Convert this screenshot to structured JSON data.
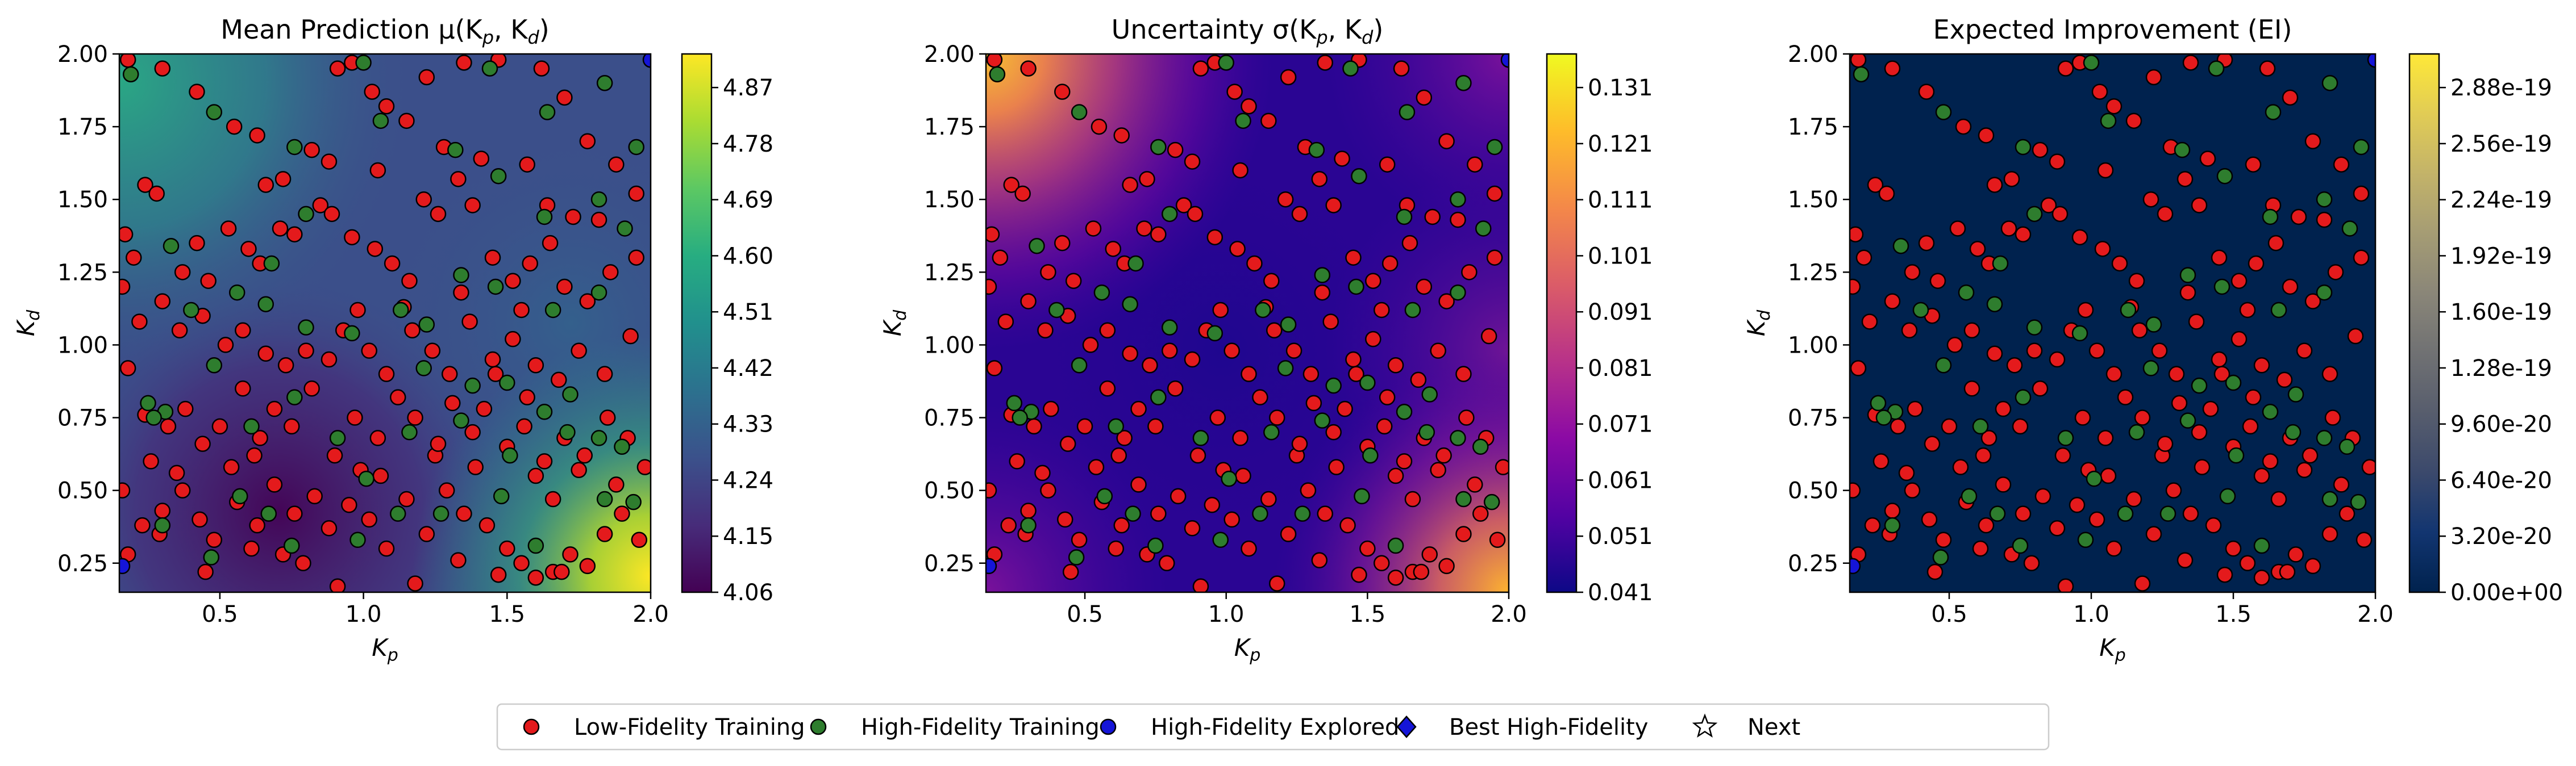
{
  "chart_data": [
    {
      "type": "heatmap",
      "title": "Mean Prediction μ(K",
      "title_sub_p": "p",
      "title_sep": ", K",
      "title_sub_d": "d",
      "title_end": ")",
      "xlabel": "K",
      "xlabel_sub": "p",
      "ylabel": "K",
      "ylabel_sub": "d",
      "xlim": [
        0.15,
        2.0
      ],
      "ylim": [
        0.15,
        2.0
      ],
      "xticks": [
        "0.5",
        "1.0",
        "1.5",
        "2.0"
      ],
      "yticks": [
        "0.25",
        "0.50",
        "0.75",
        "1.00",
        "1.25",
        "1.50",
        "1.75",
        "2.00"
      ],
      "colormap": "viridis",
      "colorbar_ticks": [
        "4.06",
        "4.15",
        "4.24",
        "4.33",
        "4.42",
        "4.51",
        "4.60",
        "4.69",
        "4.78",
        "4.87"
      ],
      "colorbar_range": [
        4.06,
        4.91
      ]
    },
    {
      "type": "heatmap",
      "title": "Uncertainty σ(K",
      "title_sub_p": "p",
      "title_sep": ", K",
      "title_sub_d": "d",
      "title_end": ")",
      "xlabel": "K",
      "xlabel_sub": "p",
      "ylabel": "K",
      "ylabel_sub": "d",
      "xlim": [
        0.15,
        2.0
      ],
      "ylim": [
        0.15,
        2.0
      ],
      "xticks": [
        "0.5",
        "1.0",
        "1.5",
        "2.0"
      ],
      "yticks": [
        "0.25",
        "0.50",
        "0.75",
        "1.00",
        "1.25",
        "1.50",
        "1.75",
        "2.00"
      ],
      "colormap": "plasma",
      "colorbar_ticks": [
        "0.041",
        "0.051",
        "0.061",
        "0.071",
        "0.081",
        "0.091",
        "0.101",
        "0.111",
        "0.121",
        "0.131"
      ],
      "colorbar_range": [
        0.041,
        0.134
      ]
    },
    {
      "type": "heatmap",
      "title": "Expected Improvement (EI)",
      "title_sub_p": "",
      "title_sep": "",
      "title_sub_d": "",
      "title_end": "",
      "xlabel": "K",
      "xlabel_sub": "p",
      "ylabel": "K",
      "ylabel_sub": "d",
      "xlim": [
        0.15,
        2.0
      ],
      "ylim": [
        0.15,
        2.0
      ],
      "xticks": [
        "0.5",
        "1.0",
        "1.5",
        "2.0"
      ],
      "yticks": [
        "0.25",
        "0.50",
        "0.75",
        "1.00",
        "1.25",
        "1.50",
        "1.75",
        "2.00"
      ],
      "colormap": "cividis",
      "colorbar_ticks": [
        "0.00e+00",
        "3.20e-20",
        "6.40e-20",
        "9.60e-20",
        "1.28e-19",
        "1.60e-19",
        "1.92e-19",
        "2.24e-19",
        "2.56e-19",
        "2.88e-19"
      ],
      "colorbar_range": [
        0.0,
        3.2e-19
      ]
    }
  ],
  "points": {
    "low_fidelity": [
      [
        0.18,
        1.98
      ],
      [
        0.3,
        1.95
      ],
      [
        0.42,
        1.87
      ],
      [
        0.55,
        1.75
      ],
      [
        0.63,
        1.72
      ],
      [
        0.82,
        1.67
      ],
      [
        0.88,
        1.63
      ],
      [
        0.91,
        1.95
      ],
      [
        0.96,
        1.97
      ],
      [
        1.03,
        1.87
      ],
      [
        1.08,
        1.82
      ],
      [
        1.15,
        1.77
      ],
      [
        1.22,
        1.92
      ],
      [
        1.35,
        1.97
      ],
      [
        1.47,
        1.98
      ],
      [
        1.62,
        1.95
      ],
      [
        1.7,
        1.85
      ],
      [
        1.78,
        1.7
      ],
      [
        1.88,
        1.62
      ],
      [
        1.95,
        1.52
      ],
      [
        0.17,
        1.38
      ],
      [
        0.2,
        1.3
      ],
      [
        0.24,
        1.55
      ],
      [
        0.28,
        1.52
      ],
      [
        0.37,
        1.25
      ],
      [
        0.42,
        1.35
      ],
      [
        0.46,
        1.22
      ],
      [
        0.53,
        1.4
      ],
      [
        0.6,
        1.33
      ],
      [
        0.64,
        1.28
      ],
      [
        0.71,
        1.4
      ],
      [
        0.76,
        1.38
      ],
      [
        0.85,
        1.48
      ],
      [
        0.89,
        1.45
      ],
      [
        0.96,
        1.37
      ],
      [
        1.04,
        1.33
      ],
      [
        1.1,
        1.28
      ],
      [
        1.16,
        1.22
      ],
      [
        1.21,
        1.5
      ],
      [
        1.26,
        1.45
      ],
      [
        1.33,
        1.57
      ],
      [
        1.38,
        1.48
      ],
      [
        1.45,
        1.3
      ],
      [
        1.52,
        1.22
      ],
      [
        1.58,
        1.28
      ],
      [
        1.65,
        1.35
      ],
      [
        1.7,
        1.2
      ],
      [
        1.78,
        1.15
      ],
      [
        1.86,
        1.25
      ],
      [
        1.95,
        1.3
      ],
      [
        0.16,
        1.2
      ],
      [
        0.22,
        1.08
      ],
      [
        0.3,
        1.15
      ],
      [
        0.36,
        1.05
      ],
      [
        0.44,
        1.1
      ],
      [
        0.52,
        1.0
      ],
      [
        0.58,
        1.05
      ],
      [
        0.66,
        0.97
      ],
      [
        0.73,
        0.93
      ],
      [
        0.8,
        0.98
      ],
      [
        0.88,
        0.95
      ],
      [
        0.93,
        1.05
      ],
      [
        1.02,
        0.98
      ],
      [
        1.08,
        0.9
      ],
      [
        1.17,
        1.05
      ],
      [
        1.24,
        0.98
      ],
      [
        1.3,
        0.9
      ],
      [
        1.37,
        1.08
      ],
      [
        1.45,
        0.95
      ],
      [
        1.52,
        1.02
      ],
      [
        1.6,
        0.93
      ],
      [
        1.68,
        0.88
      ],
      [
        1.75,
        0.98
      ],
      [
        1.84,
        0.9
      ],
      [
        1.93,
        1.03
      ],
      [
        0.18,
        0.92
      ],
      [
        0.24,
        0.76
      ],
      [
        0.32,
        0.72
      ],
      [
        0.38,
        0.78
      ],
      [
        0.44,
        0.66
      ],
      [
        0.5,
        0.72
      ],
      [
        0.58,
        0.85
      ],
      [
        0.64,
        0.68
      ],
      [
        0.69,
        0.78
      ],
      [
        0.75,
        0.72
      ],
      [
        0.82,
        0.85
      ],
      [
        0.9,
        0.62
      ],
      [
        0.97,
        0.75
      ],
      [
        1.05,
        0.68
      ],
      [
        1.12,
        0.82
      ],
      [
        1.18,
        0.75
      ],
      [
        1.25,
        0.62
      ],
      [
        1.31,
        0.8
      ],
      [
        1.38,
        0.7
      ],
      [
        1.42,
        0.78
      ],
      [
        1.5,
        0.65
      ],
      [
        1.56,
        0.72
      ],
      [
        1.63,
        0.6
      ],
      [
        1.7,
        0.68
      ],
      [
        1.77,
        0.62
      ],
      [
        1.85,
        0.75
      ],
      [
        1.92,
        0.68
      ],
      [
        1.98,
        0.58
      ],
      [
        0.16,
        0.5
      ],
      [
        0.23,
        0.38
      ],
      [
        0.3,
        0.43
      ],
      [
        0.37,
        0.5
      ],
      [
        0.43,
        0.4
      ],
      [
        0.48,
        0.33
      ],
      [
        0.56,
        0.46
      ],
      [
        0.63,
        0.38
      ],
      [
        0.69,
        0.52
      ],
      [
        0.76,
        0.42
      ],
      [
        0.83,
        0.48
      ],
      [
        0.88,
        0.37
      ],
      [
        0.95,
        0.45
      ],
      [
        1.02,
        0.4
      ],
      [
        1.08,
        0.3
      ],
      [
        1.15,
        0.47
      ],
      [
        1.22,
        0.35
      ],
      [
        1.29,
        0.5
      ],
      [
        1.35,
        0.42
      ],
      [
        1.43,
        0.38
      ],
      [
        1.5,
        0.3
      ],
      [
        1.55,
        0.25
      ],
      [
        1.6,
        0.2
      ],
      [
        1.66,
        0.22
      ],
      [
        1.72,
        0.28
      ],
      [
        1.78,
        0.24
      ],
      [
        1.84,
        0.35
      ],
      [
        1.9,
        0.42
      ],
      [
        1.96,
        0.33
      ],
      [
        0.18,
        0.28
      ],
      [
        0.29,
        0.35
      ],
      [
        0.45,
        0.22
      ],
      [
        0.61,
        0.3
      ],
      [
        0.79,
        0.25
      ],
      [
        0.91,
        0.17
      ],
      [
        1.18,
        0.18
      ],
      [
        1.33,
        0.26
      ],
      [
        1.47,
        0.21
      ],
      [
        1.69,
        0.22
      ],
      [
        0.66,
        1.55
      ],
      [
        0.72,
        1.57
      ],
      [
        1.05,
        1.6
      ],
      [
        1.28,
        1.68
      ],
      [
        1.41,
        1.64
      ],
      [
        1.57,
        1.62
      ],
      [
        1.64,
        1.48
      ],
      [
        1.73,
        1.44
      ],
      [
        0.98,
        1.12
      ],
      [
        1.14,
        1.13
      ],
      [
        1.34,
        1.18
      ],
      [
        1.55,
        1.12
      ],
      [
        1.82,
        1.43
      ],
      [
        0.54,
        0.58
      ],
      [
        0.62,
        0.62
      ],
      [
        0.99,
        0.57
      ],
      [
        1.06,
        0.55
      ],
      [
        1.39,
        0.58
      ],
      [
        1.6,
        0.55
      ],
      [
        1.66,
        0.47
      ],
      [
        1.75,
        0.57
      ],
      [
        1.88,
        0.52
      ],
      [
        0.26,
        0.6
      ],
      [
        0.35,
        0.56
      ],
      [
        0.72,
        0.28
      ],
      [
        1.26,
        0.66
      ],
      [
        1.46,
        0.9
      ],
      [
        1.57,
        0.82
      ]
    ],
    "high_fidelity": [
      [
        0.19,
        1.93
      ],
      [
        0.48,
        1.8
      ],
      [
        0.76,
        1.68
      ],
      [
        1.0,
        1.97
      ],
      [
        1.06,
        1.77
      ],
      [
        1.44,
        1.95
      ],
      [
        1.64,
        1.8
      ],
      [
        1.84,
        1.9
      ],
      [
        1.95,
        1.68
      ],
      [
        0.33,
        1.34
      ],
      [
        0.68,
        1.28
      ],
      [
        0.8,
        1.45
      ],
      [
        1.32,
        1.67
      ],
      [
        1.47,
        1.58
      ],
      [
        1.63,
        1.44
      ],
      [
        1.82,
        1.5
      ],
      [
        1.91,
        1.4
      ],
      [
        0.4,
        1.12
      ],
      [
        0.56,
        1.18
      ],
      [
        0.66,
        1.14
      ],
      [
        0.8,
        1.06
      ],
      [
        1.13,
        1.12
      ],
      [
        1.22,
        1.07
      ],
      [
        1.34,
        1.24
      ],
      [
        1.46,
        1.2
      ],
      [
        1.66,
        1.12
      ],
      [
        1.82,
        1.18
      ],
      [
        0.25,
        0.8
      ],
      [
        0.31,
        0.77
      ],
      [
        0.48,
        0.93
      ],
      [
        0.76,
        0.82
      ],
      [
        0.96,
        1.04
      ],
      [
        1.21,
        0.92
      ],
      [
        1.38,
        0.86
      ],
      [
        1.5,
        0.87
      ],
      [
        1.63,
        0.77
      ],
      [
        1.72,
        0.83
      ],
      [
        0.27,
        0.75
      ],
      [
        0.61,
        0.72
      ],
      [
        0.91,
        0.68
      ],
      [
        1.16,
        0.7
      ],
      [
        1.34,
        0.74
      ],
      [
        1.51,
        0.62
      ],
      [
        1.71,
        0.7
      ],
      [
        1.82,
        0.68
      ],
      [
        0.3,
        0.38
      ],
      [
        0.47,
        0.27
      ],
      [
        0.67,
        0.42
      ],
      [
        0.75,
        0.31
      ],
      [
        0.98,
        0.33
      ],
      [
        1.01,
        0.54
      ],
      [
        1.12,
        0.42
      ],
      [
        1.48,
        0.48
      ],
      [
        1.84,
        0.47
      ],
      [
        1.94,
        0.46
      ],
      [
        0.57,
        0.48
      ],
      [
        1.27,
        0.42
      ],
      [
        1.6,
        0.31
      ],
      [
        1.9,
        0.65
      ]
    ],
    "high_fidelity_explored": [
      [
        0.16,
        0.24
      ],
      [
        2.0,
        1.98
      ]
    ]
  },
  "legend": {
    "items": [
      {
        "label": "Low-Fidelity Training",
        "marker": "circle",
        "color": "#e41a1c"
      },
      {
        "label": "High-Fidelity Training",
        "marker": "circle",
        "color": "#2e7d2e"
      },
      {
        "label": "High-Fidelity Explored",
        "marker": "circle",
        "color": "#1515d8"
      },
      {
        "label": "Best High-Fidelity",
        "marker": "diamond",
        "color": "#1515d8"
      },
      {
        "label": "Next",
        "marker": "star",
        "color": "#ffffff"
      }
    ]
  }
}
